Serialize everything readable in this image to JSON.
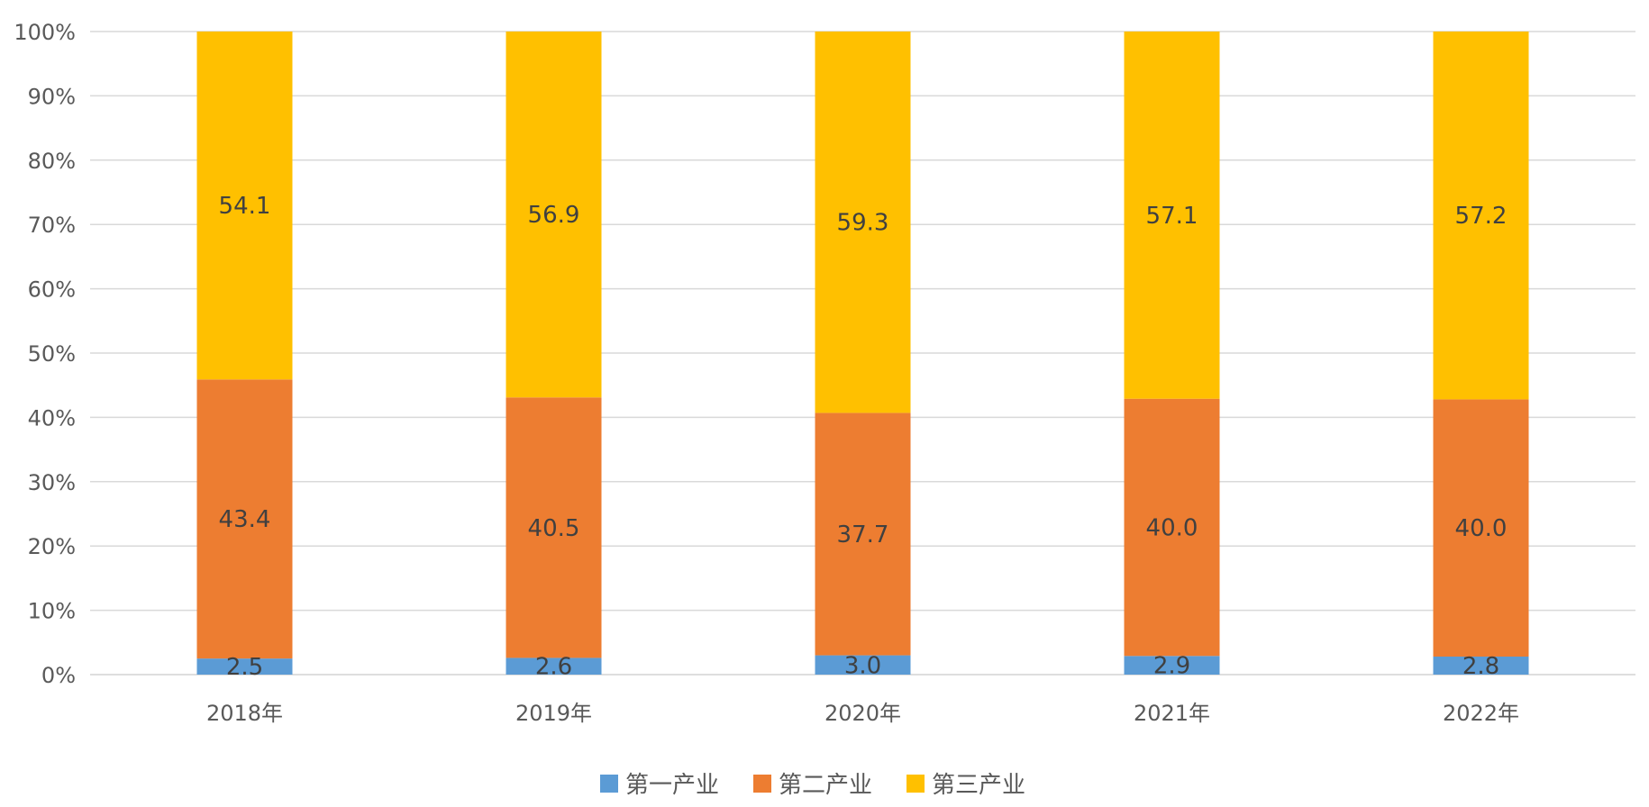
{
  "chart_data": {
    "type": "bar",
    "stacked": true,
    "percent_stacked": true,
    "categories": [
      "2018年",
      "2019年",
      "2020年",
      "2021年",
      "2022年"
    ],
    "series": [
      {
        "name": "第一产业",
        "color": "#5B9BD5",
        "values": [
          2.5,
          2.6,
          3.0,
          2.9,
          2.8
        ],
        "labels": [
          "2.5",
          "2.6",
          "3.0",
          "2.9",
          "2.8"
        ]
      },
      {
        "name": "第二产业",
        "color": "#ED7D31",
        "values": [
          43.4,
          40.5,
          37.7,
          40.0,
          40.0
        ],
        "labels": [
          "43.4",
          "40.5",
          "37.7",
          "40.0",
          "40.0"
        ]
      },
      {
        "name": "第三产业",
        "color": "#FFC000",
        "values": [
          54.1,
          56.9,
          59.3,
          57.1,
          57.2
        ],
        "labels": [
          "54.1",
          "56.9",
          "59.3",
          "57.1",
          "57.2"
        ]
      }
    ],
    "ylim": [
      0,
      100
    ],
    "y_ticks": [
      "0%",
      "10%",
      "20%",
      "30%",
      "40%",
      "50%",
      "60%",
      "70%",
      "80%",
      "90%",
      "100%"
    ],
    "grid": true,
    "legend_position": "bottom"
  }
}
